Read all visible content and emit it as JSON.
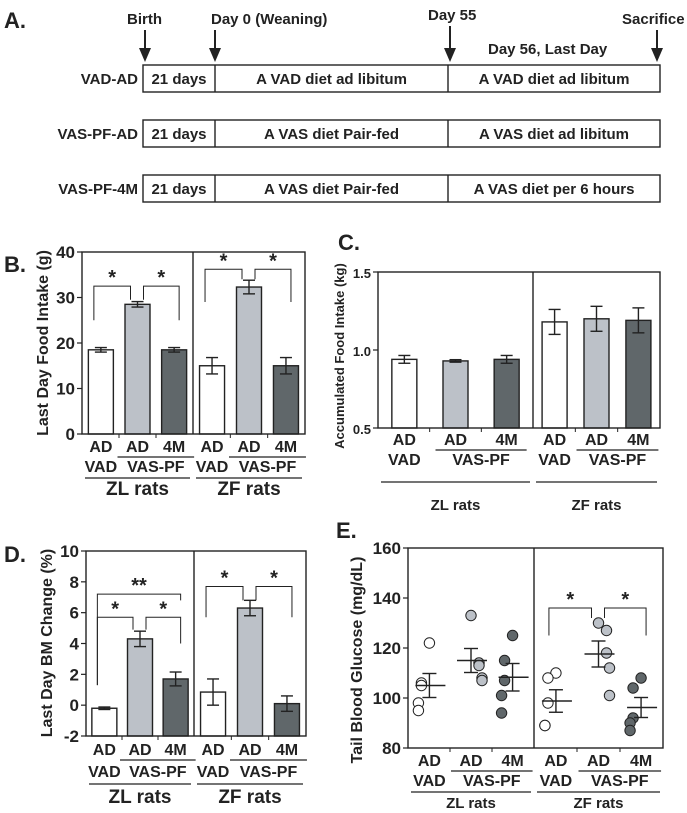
{
  "panel_a": {
    "label": "A.",
    "markers": [
      {
        "label": "Birth"
      },
      {
        "label": "Day 0 (Weaning)"
      },
      {
        "label": "Day 55"
      },
      {
        "label": "Sacrifice"
      }
    ],
    "last_day_label": "Day 56, Last Day",
    "rows": [
      {
        "name": "VAD-AD",
        "segments": [
          "21 days",
          "A VAD diet ad libitum",
          "A VAD diet ad libitum"
        ]
      },
      {
        "name": "VAS-PF-AD",
        "segments": [
          "21 days",
          "A VAS diet Pair-fed",
          "A VAS diet ad libitum"
        ]
      },
      {
        "name": "VAS-PF-4M",
        "segments": [
          "21 days",
          "A VAS diet Pair-fed",
          "A VAS diet per 6 hours"
        ]
      }
    ]
  },
  "colors": {
    "vad": "#ffffff",
    "vas_pf_ad": "#bcc1c8",
    "vas_pf_4m": "#60676a",
    "ink": "#222222"
  },
  "chart_data": [
    {
      "id": "B",
      "panel_label": "B.",
      "type": "bar",
      "ylabel": "Last Day Food Intake (g)",
      "ylim": [
        0,
        40
      ],
      "yticks": [
        "0",
        "10",
        "20",
        "30",
        "40"
      ],
      "cat_row1": [
        "AD",
        "AD",
        "4M"
      ],
      "cat_row2": [
        "VAD",
        "VAS-PF"
      ],
      "groups": [
        "ZL rats",
        "ZF rats"
      ],
      "series": [
        {
          "group": "ZL rats",
          "values": [
            18.5,
            28.5,
            18.5
          ],
          "errors": [
            0.5,
            0.6,
            0.5
          ]
        },
        {
          "group": "ZF rats",
          "values": [
            15.0,
            32.3,
            15.0
          ],
          "errors": [
            1.8,
            1.5,
            1.8
          ]
        }
      ],
      "significance": [
        {
          "group": 0,
          "pair": [
            0,
            1
          ],
          "label": "*",
          "top": 32.5,
          "ends": [
            25,
            29.5
          ]
        },
        {
          "group": 0,
          "pair": [
            1,
            2
          ],
          "label": "*",
          "top": 32.5,
          "ends": [
            29.5,
            25
          ]
        },
        {
          "group": 1,
          "pair": [
            0,
            1
          ],
          "label": "*",
          "top": 36.2,
          "ends": [
            29,
            34
          ]
        },
        {
          "group": 1,
          "pair": [
            1,
            2
          ],
          "label": "*",
          "top": 36.2,
          "ends": [
            34,
            29
          ]
        }
      ]
    },
    {
      "id": "C",
      "panel_label": "C.",
      "type": "bar",
      "ylabel": "Accumulated Food Intake (kg)",
      "ylim": [
        0.5,
        1.5
      ],
      "yticks": [
        "0.5",
        "1.0",
        "1.5"
      ],
      "cat_row1": [
        "AD",
        "AD",
        "4M"
      ],
      "cat_row2": [
        "VAD",
        "VAS-PF"
      ],
      "groups": [
        "ZL rats",
        "ZF rats"
      ],
      "series": [
        {
          "group": "ZL rats",
          "values": [
            0.94,
            0.93,
            0.94
          ],
          "errors": [
            0.025,
            0.008,
            0.025
          ]
        },
        {
          "group": "ZF rats",
          "values": [
            1.18,
            1.2,
            1.19
          ],
          "errors": [
            0.08,
            0.08,
            0.08
          ]
        }
      ],
      "significance": []
    },
    {
      "id": "D",
      "panel_label": "D.",
      "type": "bar",
      "ylabel": "Last Day BM Change (%)",
      "ylim": [
        -2,
        10
      ],
      "yticks": [
        "-2",
        "0",
        "2",
        "4",
        "6",
        "8",
        "10"
      ],
      "cat_row1": [
        "AD",
        "AD",
        "4M"
      ],
      "cat_row2": [
        "VAD",
        "VAS-PF"
      ],
      "groups": [
        "ZL rats",
        "ZF rats"
      ],
      "series": [
        {
          "group": "ZL rats",
          "values": [
            -0.2,
            4.3,
            1.7
          ],
          "errors": [
            0.08,
            0.5,
            0.45
          ]
        },
        {
          "group": "ZF rats",
          "values": [
            0.85,
            6.3,
            0.1
          ],
          "errors": [
            0.85,
            0.5,
            0.5
          ]
        }
      ],
      "significance": [
        {
          "group": 0,
          "pair": [
            0,
            1
          ],
          "label": "*",
          "top": 5.7,
          "ends": [
            1.3,
            4.9
          ]
        },
        {
          "group": 0,
          "pair": [
            1,
            2
          ],
          "label": "*",
          "top": 5.7,
          "ends": [
            4.9,
            4.0
          ]
        },
        {
          "group": 0,
          "pair": [
            0,
            2
          ],
          "label": "**",
          "top": 7.2,
          "ends": [
            1.3,
            6.8
          ]
        },
        {
          "group": 1,
          "pair": [
            0,
            1
          ],
          "label": "*",
          "top": 7.7,
          "ends": [
            5.7,
            6.8
          ]
        },
        {
          "group": 1,
          "pair": [
            1,
            2
          ],
          "label": "*",
          "top": 7.7,
          "ends": [
            6.8,
            5.7
          ]
        }
      ]
    },
    {
      "id": "E",
      "panel_label": "E.",
      "type": "scatter",
      "ylabel": "Tail Blood Glucose (mg/dL)",
      "ylim": [
        80,
        160
      ],
      "yticks": [
        "80",
        "100",
        "120",
        "140",
        "160"
      ],
      "cat_row1": [
        "AD",
        "AD",
        "4M"
      ],
      "cat_row2": [
        "VAD",
        "VAS-PF"
      ],
      "groups": [
        "ZL rats",
        "ZF rats"
      ],
      "series": [
        {
          "group": "ZL rats",
          "points": [
            [
              122,
              106,
              105,
              98,
              95
            ],
            [
              133,
              114,
              113,
              108,
              107
            ],
            [
              125,
              115,
              107,
              101,
              94
            ]
          ],
          "means": [
            105,
            115,
            108.3
          ],
          "errors": [
            4.8,
            4.8,
            5.5
          ]
        },
        {
          "group": "ZF rats",
          "points": [
            [
              110,
              108,
              98,
              89,
              89
            ],
            [
              130,
              127,
              118,
              112,
              101
            ],
            [
              108,
              104,
              92,
              90,
              87
            ]
          ],
          "means": [
            98.8,
            117.6,
            96.2
          ],
          "errors": [
            4.5,
            5.2,
            4.0
          ]
        }
      ],
      "significance": [
        {
          "group": 1,
          "pair": [
            0,
            1
          ],
          "label": "*",
          "top": 136,
          "ends": [
            125,
            132
          ]
        },
        {
          "group": 1,
          "pair": [
            1,
            2
          ],
          "label": "*",
          "top": 136,
          "ends": [
            132,
            125
          ]
        }
      ]
    }
  ]
}
